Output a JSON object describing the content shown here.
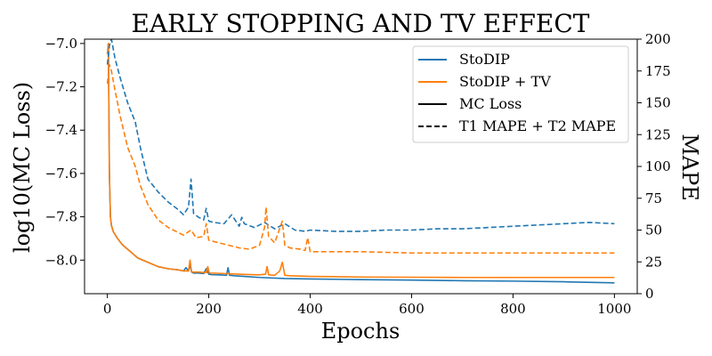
{
  "chart_data": {
    "type": "line",
    "title": "EARLY STOPPING AND TV EFFECT",
    "xlabel": "Epochs",
    "ylabel": "log10(MC Loss)",
    "y2label": "MAPE",
    "xlim": [
      -45,
      1045
    ],
    "ylim": [
      -8.155,
      -6.98
    ],
    "y2lim": [
      0,
      200
    ],
    "xticks": [
      0,
      200,
      400,
      600,
      800,
      1000
    ],
    "xtick_labels": [
      "0",
      "200",
      "400",
      "600",
      "800",
      "1000"
    ],
    "yticks": [
      -7.0,
      -7.2,
      -7.4,
      -7.6,
      -7.8,
      -8.0
    ],
    "ytick_labels": [
      "−7.0",
      "−7.2",
      "−7.4",
      "−7.6",
      "−7.8",
      "−8.0"
    ],
    "y2ticks": [
      0,
      25,
      50,
      75,
      100,
      125,
      150,
      175,
      200
    ],
    "y2tick_labels": [
      "0",
      "25",
      "50",
      "75",
      "100",
      "125",
      "150",
      "175",
      "200"
    ],
    "legend_position": "top-right",
    "legend": [
      {
        "label": "StoDIP",
        "color": "#1f77b4",
        "style": "solid"
      },
      {
        "label": "StoDIP + TV",
        "color": "#ff7f0e",
        "style": "solid"
      },
      {
        "label": "MC Loss",
        "color": "#000000",
        "style": "solid"
      },
      {
        "label": "T1 MAPE + T2 MAPE",
        "color": "#000000",
        "style": "dashed"
      }
    ],
    "series": [
      {
        "name": "StoDIP MC Loss",
        "axis": "left",
        "color": "#1f77b4",
        "style": "solid",
        "x": [
          0,
          2,
          4,
          6,
          8,
          12,
          20,
          30,
          45,
          60,
          80,
          100,
          120,
          140,
          150,
          155,
          160,
          163,
          166,
          170,
          180,
          190,
          195,
          200,
          205,
          220,
          235,
          238,
          241,
          250,
          270,
          300,
          350,
          400,
          500,
          600,
          700,
          800,
          900,
          1000
        ],
        "y": [
          -7.05,
          -7.0,
          -7.6,
          -7.8,
          -7.84,
          -7.87,
          -7.9,
          -7.93,
          -7.96,
          -7.99,
          -8.01,
          -8.03,
          -8.04,
          -8.045,
          -8.05,
          -8.035,
          -8.05,
          -8.02,
          -8.055,
          -8.06,
          -8.06,
          -8.062,
          -8.04,
          -8.065,
          -8.067,
          -8.068,
          -8.07,
          -8.035,
          -8.07,
          -8.072,
          -8.075,
          -8.08,
          -8.085,
          -8.087,
          -8.09,
          -8.092,
          -8.095,
          -8.097,
          -8.1,
          -8.105
        ]
      },
      {
        "name": "StoDIP + TV MC Loss",
        "axis": "left",
        "color": "#ff7f0e",
        "style": "solid",
        "x": [
          0,
          2,
          4,
          6,
          8,
          12,
          20,
          30,
          45,
          60,
          80,
          100,
          120,
          140,
          150,
          160,
          163,
          166,
          170,
          180,
          195,
          198,
          201,
          210,
          240,
          270,
          300,
          312,
          315,
          318,
          330,
          340,
          345,
          350,
          360,
          400,
          500,
          600,
          700,
          800,
          900,
          1000
        ],
        "y": [
          -7.05,
          -7.0,
          -7.6,
          -7.8,
          -7.84,
          -7.87,
          -7.9,
          -7.93,
          -7.96,
          -7.99,
          -8.01,
          -8.03,
          -8.04,
          -8.045,
          -8.05,
          -8.05,
          -8.0,
          -8.055,
          -8.055,
          -8.055,
          -8.058,
          -8.03,
          -8.06,
          -8.06,
          -8.063,
          -8.066,
          -8.068,
          -8.065,
          -8.03,
          -8.068,
          -8.07,
          -8.05,
          -8.01,
          -8.07,
          -8.072,
          -8.075,
          -8.078,
          -8.079,
          -8.08,
          -8.08,
          -8.08,
          -8.08
        ]
      },
      {
        "name": "StoDIP T1 MAPE + T2 MAPE",
        "axis": "right",
        "color": "#1f77b4",
        "style": "dashed",
        "x": [
          0,
          4,
          8,
          15,
          25,
          40,
          55,
          65,
          80,
          100,
          120,
          140,
          150,
          160,
          165,
          170,
          180,
          190,
          195,
          200,
          210,
          230,
          245,
          260,
          265,
          270,
          290,
          310,
          330,
          350,
          370,
          390,
          400,
          450,
          500,
          550,
          600,
          650,
          700,
          750,
          800,
          850,
          900,
          950,
          1000
        ],
        "y": [
          180,
          195,
          200,
          185,
          170,
          150,
          135,
          115,
          90,
          80,
          72,
          66,
          62,
          68,
          90,
          63,
          60,
          58,
          67,
          57,
          56,
          55,
          62,
          53,
          60,
          55,
          52,
          56,
          51,
          55,
          50,
          49,
          50,
          49,
          49,
          50,
          50,
          51,
          51,
          52,
          53,
          54,
          55,
          56,
          55
        ]
      },
      {
        "name": "StoDIP + TV T1 MAPE + T2 MAPE",
        "axis": "right",
        "color": "#ff7f0e",
        "style": "dashed",
        "x": [
          0,
          4,
          8,
          15,
          25,
          40,
          55,
          65,
          80,
          100,
          120,
          140,
          150,
          165,
          175,
          190,
          195,
          200,
          220,
          240,
          260,
          280,
          300,
          310,
          313,
          318,
          330,
          345,
          350,
          360,
          380,
          390,
          395,
          400,
          450,
          500,
          600,
          700,
          800,
          900,
          1000
        ],
        "y": [
          165,
          180,
          175,
          160,
          140,
          115,
          100,
          85,
          70,
          58,
          52,
          48,
          46,
          50,
          44,
          45,
          55,
          42,
          40,
          38,
          36,
          35,
          38,
          52,
          68,
          45,
          40,
          57,
          38,
          36,
          35,
          34,
          44,
          33,
          33,
          33,
          32,
          32,
          32,
          32,
          32
        ]
      }
    ]
  }
}
